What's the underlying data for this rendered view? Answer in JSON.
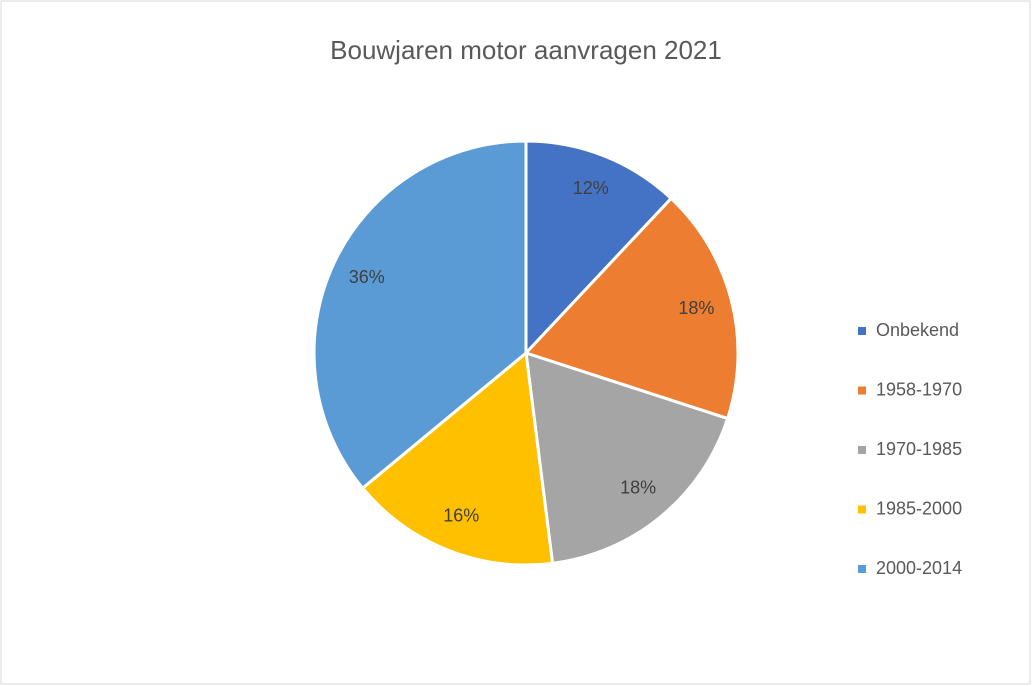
{
  "chart_data": {
    "type": "pie",
    "title": "Bouwjaren motor aanvragen 2021",
    "categories": [
      "Onbekend",
      "1958-1970",
      "1970-1985",
      "1985-2000",
      "2000-2014"
    ],
    "values": [
      12,
      18,
      18,
      16,
      36
    ],
    "value_labels": [
      "12%",
      "18%",
      "18%",
      "16%",
      "36%"
    ],
    "colors": [
      "#4472c4",
      "#ed7d31",
      "#a5a5a5",
      "#ffc000",
      "#5b9bd5"
    ],
    "legend": "right"
  }
}
